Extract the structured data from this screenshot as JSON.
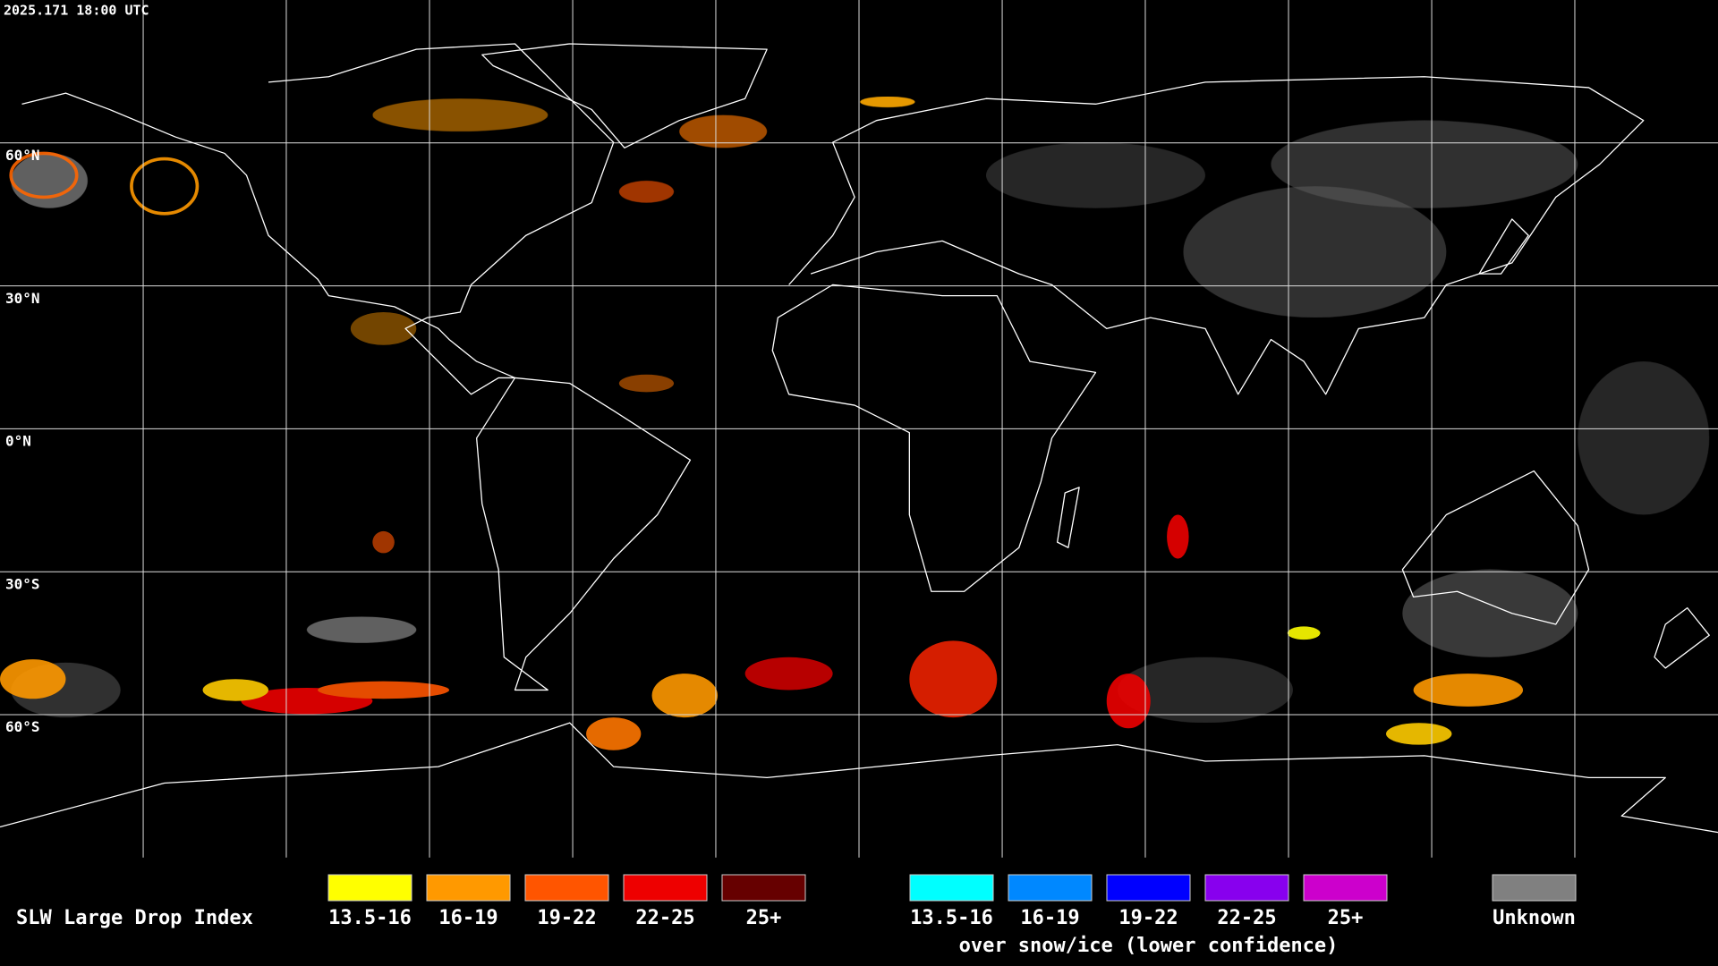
{
  "timestamp": "2025.171 18:00 UTC",
  "lat_labels": [
    "60°N",
    "30°N",
    "0°N",
    "30°S",
    "60°S"
  ],
  "legend": {
    "title": "SLW Large Drop Index",
    "groups": [
      {
        "items": [
          {
            "label": "13.5-16",
            "color": "#ffff00"
          },
          {
            "label": "16-19",
            "color": "#ff9900"
          },
          {
            "label": "19-22",
            "color": "#ff5500"
          },
          {
            "label": "22-25",
            "color": "#ee0000"
          },
          {
            "label": "25+",
            "color": "#660000"
          }
        ]
      },
      {
        "items": [
          {
            "label": "13.5-16",
            "color": "#00ffff"
          },
          {
            "label": "16-19",
            "color": "#0088ff"
          },
          {
            "label": "19-22",
            "color": "#0000ff"
          },
          {
            "label": "22-25",
            "color": "#8800ee"
          },
          {
            "label": "25+",
            "color": "#cc00cc"
          }
        ],
        "caption": "over snow/ice (lower confidence)"
      },
      {
        "items": [
          {
            "label": "Unknown",
            "color": "#808080"
          }
        ]
      }
    ]
  }
}
